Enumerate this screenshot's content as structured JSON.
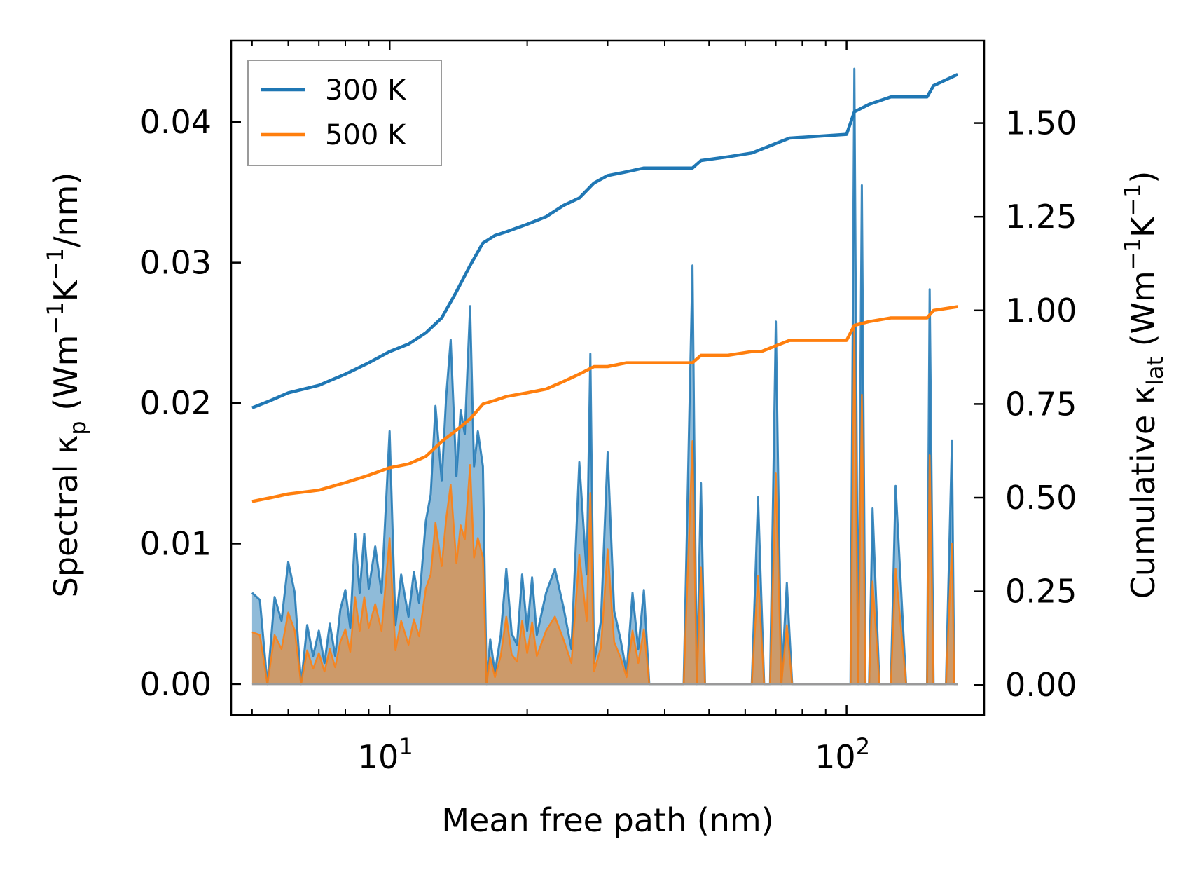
{
  "chart_data": {
    "type": "line",
    "xlabel": "Mean free path (nm)",
    "xscale": "log",
    "xlim": [
      4.5,
      200
    ],
    "x_ticks": [
      {
        "value": 10,
        "base": "10",
        "exp": "1"
      },
      {
        "value": 100,
        "base": "10",
        "exp": "2"
      }
    ],
    "ylabel_left": {
      "prefix": "Spectral κ",
      "sub": "p",
      "mid": " (Wm",
      "sup1": "−1",
      "mid2": "K",
      "sup2": "−1",
      "suffix": "/nm)"
    },
    "ylim_left": [
      -0.0022,
      0.0458
    ],
    "y_ticks_left": [
      "0.00",
      "0.01",
      "0.02",
      "0.03",
      "0.04"
    ],
    "y_tick_values_left": [
      0,
      0.01,
      0.02,
      0.03,
      0.04
    ],
    "ylabel_right": {
      "prefix": "Cumulative κ",
      "sub": "lat",
      "mid": " (Wm",
      "sup1": "−1",
      "mid2": "K",
      "sup2": "−1",
      "suffix": ")"
    },
    "ylim_right": [
      -0.08,
      1.72
    ],
    "y_ticks_right": [
      "0.00",
      "0.25",
      "0.50",
      "0.75",
      "1.00",
      "1.25",
      "1.50"
    ],
    "y_tick_values_right": [
      0,
      0.25,
      0.5,
      0.75,
      1.0,
      1.25,
      1.5
    ],
    "legend": {
      "position": "upper-left",
      "entries": [
        "300 K",
        "500 K"
      ]
    },
    "colors": {
      "300 K": "#1f77b4",
      "500 K": "#ff7f0e",
      "fill_300": "#1f77b4",
      "fill_500": "#ff7f0e"
    },
    "series": [
      {
        "name": "300 K",
        "axis": "right",
        "kind": "cumulative",
        "x": [
          5.0,
          5.5,
          6.0,
          7.0,
          8.0,
          9.0,
          10.0,
          11.0,
          12.0,
          13.0,
          14.0,
          15.0,
          16.0,
          17.0,
          18.0,
          20.0,
          22.0,
          24.0,
          26.0,
          28.0,
          30.0,
          33.0,
          36.0,
          40.0,
          46.0,
          48.0,
          55.0,
          62.0,
          65.0,
          75.0,
          100.0,
          104.0,
          112.0,
          125.0,
          150.0,
          155.0,
          175.0
        ],
        "y": [
          0.74,
          0.76,
          0.78,
          0.8,
          0.83,
          0.86,
          0.89,
          0.91,
          0.94,
          0.98,
          1.05,
          1.12,
          1.18,
          1.2,
          1.21,
          1.23,
          1.25,
          1.28,
          1.3,
          1.34,
          1.36,
          1.37,
          1.38,
          1.38,
          1.38,
          1.4,
          1.41,
          1.42,
          1.43,
          1.46,
          1.47,
          1.53,
          1.55,
          1.57,
          1.57,
          1.6,
          1.63
        ]
      },
      {
        "name": "500 K",
        "axis": "right",
        "kind": "cumulative",
        "x": [
          5.0,
          5.5,
          6.0,
          7.0,
          8.0,
          9.0,
          10.0,
          11.0,
          12.0,
          13.0,
          14.0,
          15.0,
          16.0,
          17.0,
          18.0,
          20.0,
          22.0,
          24.0,
          26.0,
          28.0,
          30.0,
          33.0,
          36.0,
          40.0,
          46.0,
          48.0,
          55.0,
          62.0,
          65.0,
          75.0,
          100.0,
          104.0,
          112.0,
          125.0,
          150.0,
          155.0,
          175.0
        ],
        "y": [
          0.49,
          0.5,
          0.51,
          0.52,
          0.54,
          0.56,
          0.58,
          0.59,
          0.61,
          0.65,
          0.68,
          0.71,
          0.75,
          0.76,
          0.77,
          0.78,
          0.79,
          0.81,
          0.83,
          0.85,
          0.85,
          0.86,
          0.86,
          0.86,
          0.86,
          0.88,
          0.88,
          0.89,
          0.89,
          0.92,
          0.92,
          0.96,
          0.97,
          0.98,
          0.98,
          1.0,
          1.01
        ]
      },
      {
        "name": "300 K spectral",
        "axis": "left",
        "kind": "spectral",
        "x": [
          5.0,
          5.2,
          5.4,
          5.6,
          5.8,
          6.0,
          6.2,
          6.4,
          6.6,
          6.8,
          7.0,
          7.2,
          7.4,
          7.6,
          7.8,
          8.0,
          8.2,
          8.4,
          8.6,
          8.8,
          9.0,
          9.3,
          9.6,
          10.0,
          10.3,
          10.6,
          11.0,
          11.3,
          11.6,
          12.0,
          12.3,
          12.6,
          13.0,
          13.3,
          13.6,
          14.0,
          14.3,
          14.6,
          15.0,
          15.3,
          15.6,
          16.0,
          16.3,
          16.6,
          17.0,
          17.5,
          18.0,
          18.5,
          19.0,
          19.5,
          20.0,
          20.5,
          21.0,
          22.0,
          23.0,
          24.0,
          25.0,
          26.0,
          27.0,
          27.5,
          28.0,
          29.0,
          30.0,
          31.0,
          32.0,
          33.0,
          34.0,
          35.0,
          36.0,
          37.0,
          38.0,
          40.0,
          44.0,
          46.0,
          47.0,
          48.0,
          49.0,
          50.0,
          55.0,
          62.0,
          64.0,
          66.0,
          68.0,
          70.0,
          72.0,
          74.0,
          76.0,
          80.0,
          90.0,
          100.0,
          102.0,
          104.0,
          106.0,
          108.0,
          110.0,
          112.0,
          114.0,
          118.0,
          122.0,
          125.0,
          128.0,
          135.0,
          145.0,
          150.0,
          152.0,
          155.0,
          158.0,
          165.0,
          170.0,
          172.0,
          175.0
        ],
        "y": [
          0.0065,
          0.006,
          0.0,
          0.0062,
          0.0045,
          0.0087,
          0.0065,
          0.0,
          0.0042,
          0.002,
          0.0038,
          0.0015,
          0.0043,
          0.002,
          0.0053,
          0.0067,
          0.004,
          0.0107,
          0.0065,
          0.0107,
          0.0068,
          0.0098,
          0.0065,
          0.018,
          0.0042,
          0.0078,
          0.0048,
          0.008,
          0.0058,
          0.0116,
          0.0135,
          0.0198,
          0.0145,
          0.0205,
          0.0245,
          0.0148,
          0.0195,
          0.0178,
          0.0269,
          0.0155,
          0.018,
          0.0155,
          0.0,
          0.0032,
          0.0008,
          0.0035,
          0.0082,
          0.0036,
          0.0028,
          0.0078,
          0.0038,
          0.0076,
          0.0035,
          0.0065,
          0.0082,
          0.0055,
          0.0025,
          0.0158,
          0.0078,
          0.0235,
          0.0015,
          0.0045,
          0.0165,
          0.0052,
          0.0032,
          0.0008,
          0.0065,
          0.0025,
          0.0067,
          0.0,
          0.0,
          0.0,
          0.0,
          0.0298,
          0.0,
          0.0143,
          0.0,
          0.0,
          0.0,
          0.0,
          0.0133,
          0.0,
          0.0,
          0.0258,
          0.0,
          0.0072,
          0.0,
          0.0,
          0.0,
          0.0,
          0.0,
          0.0438,
          0.0,
          0.0355,
          0.0,
          0.0,
          0.0125,
          0.0,
          0.0,
          0.0,
          0.0141,
          0.0,
          0.0,
          0.0,
          0.0281,
          0.0,
          0.0,
          0.0,
          0.0173,
          0.0,
          0.0
        ]
      },
      {
        "name": "500 K spectral",
        "axis": "left",
        "kind": "spectral",
        "x": [
          5.0,
          5.2,
          5.4,
          5.6,
          5.8,
          6.0,
          6.2,
          6.4,
          6.6,
          6.8,
          7.0,
          7.2,
          7.4,
          7.6,
          7.8,
          8.0,
          8.2,
          8.4,
          8.6,
          8.8,
          9.0,
          9.3,
          9.6,
          10.0,
          10.3,
          10.6,
          11.0,
          11.3,
          11.6,
          12.0,
          12.3,
          12.6,
          13.0,
          13.3,
          13.6,
          14.0,
          14.3,
          14.6,
          15.0,
          15.3,
          15.6,
          16.0,
          16.3,
          16.6,
          17.0,
          17.5,
          18.0,
          18.5,
          19.0,
          19.5,
          20.0,
          20.5,
          21.0,
          22.0,
          23.0,
          24.0,
          25.0,
          26.0,
          27.0,
          27.5,
          28.0,
          29.0,
          30.0,
          31.0,
          32.0,
          33.0,
          34.0,
          35.0,
          36.0,
          37.0,
          38.0,
          40.0,
          44.0,
          46.0,
          47.0,
          48.0,
          49.0,
          50.0,
          55.0,
          62.0,
          64.0,
          66.0,
          68.0,
          70.0,
          72.0,
          74.0,
          76.0,
          80.0,
          90.0,
          100.0,
          102.0,
          104.0,
          106.0,
          108.0,
          110.0,
          112.0,
          114.0,
          118.0,
          122.0,
          125.0,
          128.0,
          135.0,
          145.0,
          150.0,
          152.0,
          155.0,
          158.0,
          165.0,
          170.0,
          172.0,
          175.0
        ],
        "y": [
          0.0037,
          0.0035,
          0.0,
          0.0035,
          0.0025,
          0.0051,
          0.0038,
          0.0,
          0.0024,
          0.0011,
          0.0022,
          0.0009,
          0.0025,
          0.0012,
          0.003,
          0.0039,
          0.0023,
          0.0062,
          0.0038,
          0.0062,
          0.004,
          0.0057,
          0.0038,
          0.0104,
          0.0024,
          0.0045,
          0.0028,
          0.0046,
          0.0034,
          0.0068,
          0.0078,
          0.0115,
          0.0084,
          0.0118,
          0.0142,
          0.0086,
          0.0113,
          0.0103,
          0.0156,
          0.009,
          0.0104,
          0.009,
          0.0,
          0.0019,
          0.0005,
          0.002,
          0.0048,
          0.0021,
          0.0016,
          0.0045,
          0.0022,
          0.0044,
          0.002,
          0.0038,
          0.0048,
          0.0032,
          0.0015,
          0.0092,
          0.0045,
          0.0136,
          0.0009,
          0.0026,
          0.0096,
          0.003,
          0.0019,
          0.0005,
          0.0038,
          0.0015,
          0.0039,
          0.0,
          0.0,
          0.0,
          0.0,
          0.0173,
          0.0,
          0.0083,
          0.0,
          0.0,
          0.0,
          0.0,
          0.0077,
          0.0,
          0.0,
          0.015,
          0.0,
          0.0042,
          0.0,
          0.0,
          0.0,
          0.0,
          0.0,
          0.0254,
          0.0,
          0.0206,
          0.0,
          0.0,
          0.0073,
          0.0,
          0.0,
          0.0,
          0.0082,
          0.0,
          0.0,
          0.0,
          0.0163,
          0.0,
          0.0,
          0.0,
          0.01,
          0.0,
          0.0
        ]
      }
    ]
  }
}
